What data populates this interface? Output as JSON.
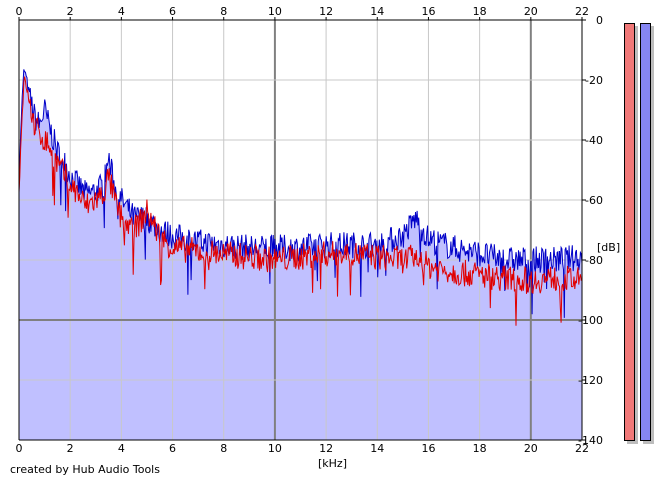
{
  "credit_text": "created by Hub Audio Tools",
  "chart_data": {
    "type": "area",
    "title": "",
    "xlabel": "[kHz]",
    "ylabel": "[dB]",
    "xlim": [
      0,
      22
    ],
    "ylim": [
      -140,
      0
    ],
    "x_ticks": [
      0,
      2,
      4,
      6,
      8,
      10,
      12,
      14,
      16,
      18,
      20,
      22
    ],
    "y_ticks": [
      0,
      -20,
      -40,
      -60,
      -80,
      -100,
      -120,
      -140
    ],
    "grid": true,
    "colors": {
      "fill": "#c0c0ff",
      "left_channel": "#e00000",
      "right_channel": "#0000c8",
      "grid_minor": "#c8c8c8",
      "grid_major": "#808080"
    },
    "series": [
      {
        "channel": "left",
        "x": [
          0,
          0.1,
          0.2,
          0.3,
          0.4,
          0.6,
          0.8,
          1,
          1.2,
          1.5,
          1.8,
          2,
          2.3,
          2.6,
          3,
          3.3,
          3.5,
          3.8,
          4,
          4.5,
          5,
          5.5,
          6,
          7,
          8,
          9,
          10,
          11,
          12,
          13,
          14,
          15,
          15.5,
          16,
          17,
          18,
          19,
          20,
          21,
          22
        ],
        "values": [
          -58,
          -35,
          -20,
          -22,
          -28,
          -35,
          -38,
          -40,
          -42,
          -48,
          -52,
          -55,
          -58,
          -62,
          -60,
          -58,
          -52,
          -62,
          -66,
          -70,
          -64,
          -72,
          -76,
          -77,
          -78,
          -79,
          -80,
          -79,
          -78,
          -78,
          -79,
          -80,
          -79,
          -82,
          -84,
          -85,
          -86,
          -87,
          -86,
          -87
        ]
      },
      {
        "channel": "right",
        "x": [
          0,
          0.1,
          0.2,
          0.3,
          0.4,
          0.6,
          0.8,
          1,
          1.2,
          1.5,
          1.8,
          2,
          2.3,
          2.6,
          3,
          3.3,
          3.5,
          3.8,
          4,
          4.5,
          5,
          5.5,
          6,
          7,
          8,
          9,
          10,
          11,
          12,
          13,
          14,
          15,
          15.5,
          16,
          17,
          18,
          19,
          20,
          21,
          22
        ],
        "values": [
          -55,
          -30,
          -16,
          -20,
          -25,
          -32,
          -35,
          -30,
          -36,
          -44,
          -48,
          -52,
          -55,
          -58,
          -57,
          -55,
          -46,
          -58,
          -60,
          -66,
          -66,
          -70,
          -72,
          -74,
          -75,
          -76,
          -76,
          -76,
          -75,
          -75,
          -75,
          -72,
          -66,
          -73,
          -76,
          -78,
          -80,
          -80,
          -80,
          -79
        ]
      }
    ],
    "channel_meters": [
      {
        "channel": "left",
        "color": "#f07878",
        "level_db": -1
      },
      {
        "channel": "right",
        "color": "#8585f2",
        "level_db": -1
      }
    ]
  }
}
